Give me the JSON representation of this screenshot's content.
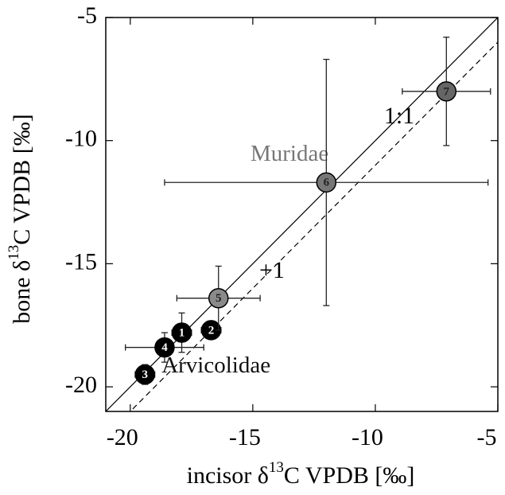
{
  "chart_data": {
    "type": "scatter",
    "x_label": {
      "before": "incisor δ",
      "sup": "13",
      "after": "C VPDB [‰]"
    },
    "y_label": {
      "before": "bone δ",
      "sup": "13",
      "after": "C VPDB [‰]"
    },
    "xlim": [
      -21,
      -5
    ],
    "ylim": [
      -21,
      -5
    ],
    "xticks": [
      -20,
      -15,
      -10,
      -5
    ],
    "yticks": [
      -20,
      -15,
      -10,
      -5
    ],
    "reference_lines": [
      {
        "label": "1:1",
        "offset": 0,
        "style": "solid"
      },
      {
        "label": "+1",
        "offset": -1,
        "style": "dashed"
      }
    ],
    "annotations": [
      {
        "text": "Muridae",
        "x": -13.5,
        "y": -10.6,
        "color": "#777777"
      },
      {
        "text": "Arvicolidae",
        "x": -16.5,
        "y": -19.2,
        "color": "#111111"
      }
    ],
    "points": [
      {
        "label": "1",
        "x": -17.9,
        "y": -17.8,
        "xerr": 0.4,
        "yerr": 0.8,
        "color": "#000000",
        "text_color": "#ffffff"
      },
      {
        "label": "2",
        "x": -16.7,
        "y": -17.7,
        "xerr": 0.4,
        "yerr": 0.2,
        "color": "#000000",
        "text_color": "#ffffff"
      },
      {
        "label": "3",
        "x": -19.4,
        "y": -19.5,
        "xerr": 0.4,
        "yerr": 0.4,
        "color": "#000000",
        "text_color": "#ffffff"
      },
      {
        "label": "4",
        "x": -18.6,
        "y": -18.4,
        "xerr": 1.6,
        "yerr": 0.6,
        "color": "#000000",
        "text_color": "#ffffff"
      },
      {
        "label": "5",
        "x": -16.4,
        "y": -16.4,
        "xerr": 1.7,
        "yerr": 1.3,
        "color": "#8a8a8a",
        "text_color": "#222222"
      },
      {
        "label": "6",
        "x": -12.0,
        "y": -11.7,
        "xerr": 6.6,
        "yerr": 5.0,
        "color": "#777777",
        "text_color": "#222222"
      },
      {
        "label": "7",
        "x": -7.1,
        "y": -8.0,
        "xerr": 1.8,
        "yerr": 2.2,
        "color": "#666666",
        "text_color": "#222222"
      }
    ]
  }
}
